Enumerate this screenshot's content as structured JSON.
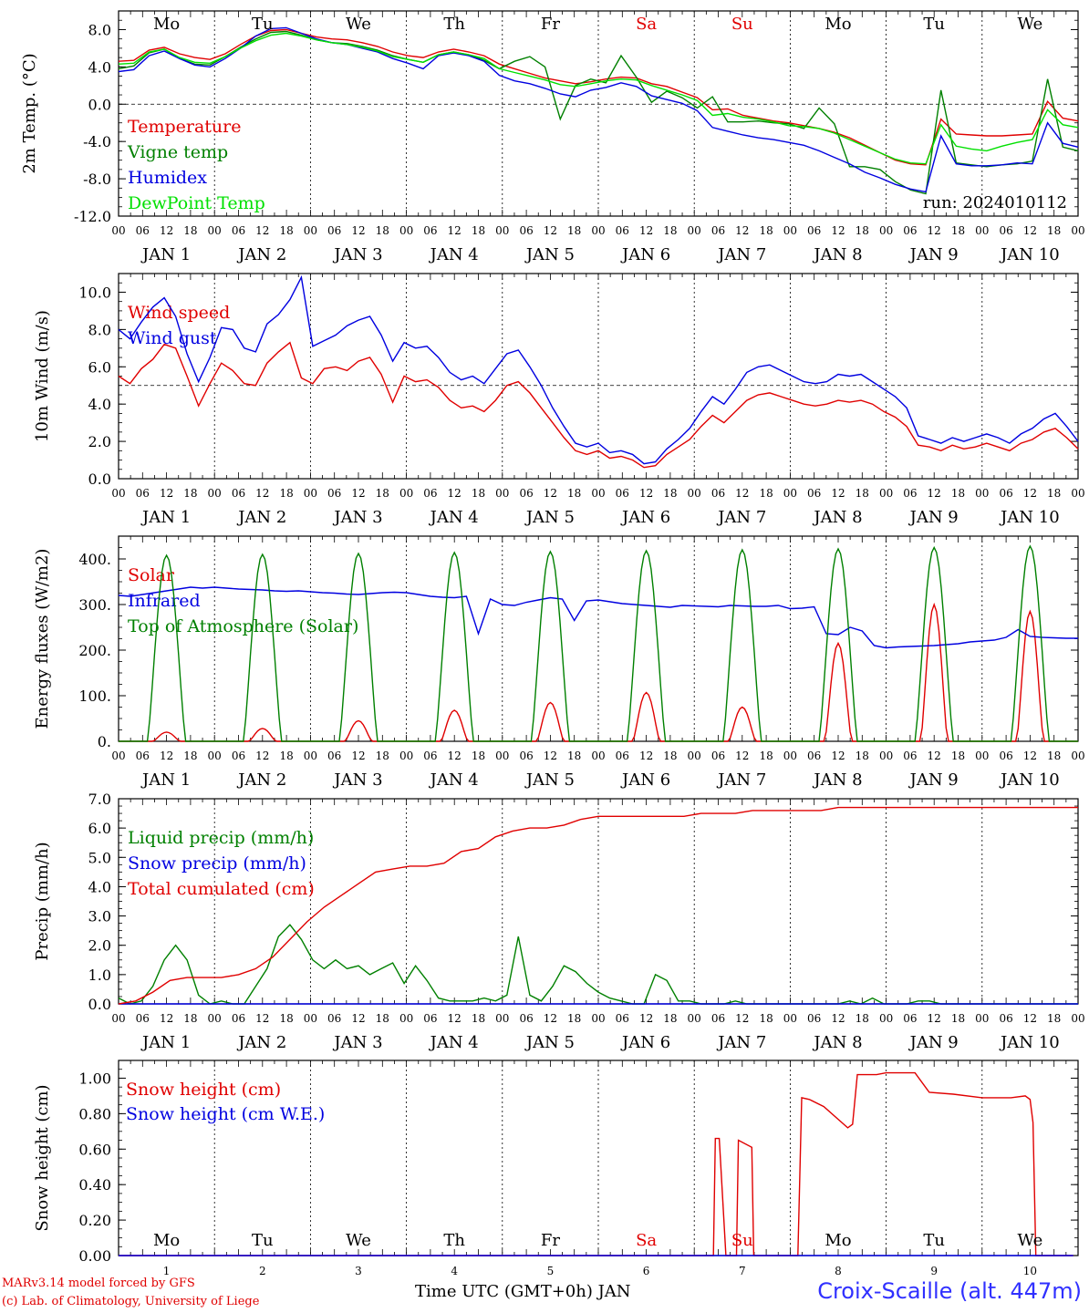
{
  "footer": {
    "model": "MARv3.14 model forced by GFS",
    "lab": "(c) Lab. of Climatology, University of Liege",
    "station": "Croix-Scaille (alt. 447m)",
    "axis_title": "Time UTC (GMT+0h) JAN"
  },
  "days": {
    "top_labels": [
      "Mo",
      "Tu",
      "We",
      "Th",
      "Fr",
      "Sa",
      "Su",
      "Mo",
      "Tu",
      "We"
    ],
    "weekend_color": "#e00000",
    "hour_ticks": [
      "00",
      "06",
      "12",
      "18"
    ],
    "date_labels": [
      "JAN  1",
      "JAN  2",
      "JAN  3",
      "JAN  4",
      "JAN  5",
      "JAN  6",
      "JAN  7",
      "JAN  8",
      "JAN  9",
      "JAN 10"
    ],
    "bottom_numbers": [
      "1",
      "2",
      "3",
      "4",
      "5",
      "6",
      "7",
      "8",
      "9",
      "10"
    ]
  },
  "chart_data": [
    {
      "type": "line",
      "ylabel": "2m Temp. (°C)",
      "ylim": [
        -12,
        10
      ],
      "yticks": [
        "8.0",
        "4.0",
        "0.0",
        "-4.0",
        "-8.0",
        "-12.0"
      ],
      "yticks_values": [
        8,
        4,
        0,
        -4,
        -8,
        -12
      ],
      "ref_line": 0,
      "annotation": "run: 2024010112",
      "series": [
        {
          "name": "Temperature",
          "color": "#e00000",
          "values": [
            4.6,
            4.7,
            5.8,
            6.1,
            5.4,
            5.0,
            4.8,
            5.4,
            6.4,
            7.3,
            7.9,
            8.0,
            7.6,
            7.2,
            7.0,
            6.9,
            6.6,
            6.2,
            5.6,
            5.2,
            5.0,
            5.6,
            5.9,
            5.6,
            5.2,
            4.3,
            3.8,
            3.3,
            2.8,
            2.5,
            2.2,
            2.4,
            2.7,
            2.9,
            2.8,
            2.2,
            1.9,
            1.3,
            0.7,
            -0.6,
            -0.5,
            -1.2,
            -1.5,
            -1.8,
            -2.0,
            -2.3,
            -2.6,
            -3.0,
            -3.6,
            -4.4,
            -5.2,
            -6.0,
            -6.4,
            -6.5,
            -1.6,
            -3.2,
            -3.3,
            -3.4,
            -3.4,
            -3.3,
            -3.2,
            0.3,
            -1.5,
            -1.8
          ]
        },
        {
          "name": "Vigne temp",
          "color": "#008000",
          "values": [
            3.8,
            4.1,
            5.5,
            5.9,
            4.9,
            4.3,
            4.2,
            5.1,
            6.1,
            7.0,
            7.7,
            7.8,
            7.4,
            6.9,
            6.6,
            6.5,
            6.2,
            5.8,
            5.2,
            4.8,
            4.5,
            5.3,
            5.6,
            5.3,
            4.7,
            3.8,
            4.6,
            5.1,
            4.0,
            -1.6,
            2.0,
            2.7,
            2.3,
            5.2,
            2.9,
            0.2,
            1.4,
            0.7,
            -0.4,
            0.8,
            -1.9,
            -1.9,
            -1.8,
            -2.0,
            -2.1,
            -2.6,
            -0.4,
            -2.1,
            -6.7,
            -6.7,
            -7.0,
            -8.3,
            -9.2,
            -9.6,
            1.5,
            -6.3,
            -6.5,
            -6.7,
            -6.5,
            -6.4,
            -6.1,
            2.7,
            -4.6,
            -5.0
          ]
        },
        {
          "name": "Humidex",
          "color": "#0000e0",
          "values": [
            3.5,
            3.7,
            5.2,
            5.7,
            4.9,
            4.2,
            4.0,
            4.9,
            6.0,
            7.3,
            8.1,
            8.2,
            7.6,
            7.0,
            6.6,
            6.4,
            6.0,
            5.6,
            4.9,
            4.4,
            3.8,
            5.2,
            5.5,
            5.2,
            4.6,
            3.1,
            2.5,
            2.2,
            1.7,
            1.1,
            0.8,
            1.5,
            1.8,
            2.3,
            1.9,
            0.9,
            0.5,
            0.1,
            -0.7,
            -2.5,
            -2.9,
            -3.3,
            -3.6,
            -3.8,
            -4.1,
            -4.4,
            -5.0,
            -5.7,
            -6.4,
            -7.3,
            -7.9,
            -8.6,
            -9.1,
            -9.4,
            -3.4,
            -6.4,
            -6.6,
            -6.6,
            -6.5,
            -6.3,
            -6.4,
            -2.0,
            -4.2,
            -4.6
          ]
        },
        {
          "name": "DewPoint Temp",
          "color": "#00e000",
          "values": [
            4.3,
            4.4,
            5.6,
            5.9,
            5.0,
            4.5,
            4.4,
            5.1,
            6.0,
            6.8,
            7.4,
            7.6,
            7.3,
            6.9,
            6.6,
            6.4,
            6.1,
            5.7,
            5.1,
            4.8,
            4.5,
            5.3,
            5.6,
            5.3,
            4.9,
            3.8,
            3.4,
            3.0,
            2.6,
            2.1,
            1.9,
            2.2,
            2.5,
            2.7,
            2.6,
            2.0,
            1.5,
            1.0,
            0.4,
            -1.2,
            -1.0,
            -1.4,
            -1.6,
            -1.9,
            -2.3,
            -2.4,
            -2.6,
            -3.1,
            -3.8,
            -4.5,
            -5.2,
            -5.9,
            -6.3,
            -6.4,
            -2.2,
            -4.5,
            -4.8,
            -5.0,
            -4.5,
            -4.1,
            -3.8,
            -0.6,
            -2.2,
            -2.5
          ]
        }
      ]
    },
    {
      "type": "line",
      "ylabel": "10m Wind (m/s)",
      "ylim": [
        0,
        11
      ],
      "yticks": [
        "10.0",
        "8.0",
        "6.0",
        "4.0",
        "2.0",
        "0.0"
      ],
      "yticks_values": [
        10,
        8,
        6,
        4,
        2,
        0
      ],
      "ref_line": 5,
      "series": [
        {
          "name": "Wind speed",
          "color": "#e00000",
          "values": [
            5.5,
            5.1,
            5.9,
            6.4,
            7.2,
            7.0,
            5.5,
            3.9,
            5.1,
            6.2,
            5.8,
            5.1,
            5.0,
            6.2,
            6.8,
            7.3,
            5.4,
            5.1,
            5.9,
            6.0,
            5.8,
            6.3,
            6.5,
            5.6,
            4.1,
            5.5,
            5.2,
            5.3,
            4.9,
            4.2,
            3.8,
            3.9,
            3.6,
            4.2,
            5.0,
            5.2,
            4.6,
            3.8,
            3.0,
            2.2,
            1.5,
            1.3,
            1.5,
            1.1,
            1.2,
            1.0,
            0.6,
            0.7,
            1.3,
            1.7,
            2.1,
            2.8,
            3.4,
            3.0,
            3.6,
            4.2,
            4.5,
            4.6,
            4.4,
            4.2,
            4.0,
            3.9,
            4.0,
            4.2,
            4.1,
            4.2,
            4.0,
            3.6,
            3.3,
            2.8,
            1.8,
            1.7,
            1.5,
            1.8,
            1.6,
            1.7,
            1.9,
            1.7,
            1.5,
            1.9,
            2.1,
            2.5,
            2.7,
            2.2,
            1.6
          ]
        },
        {
          "name": "Wind gust",
          "color": "#0000e0",
          "values": [
            8.0,
            7.5,
            8.4,
            9.2,
            9.7,
            8.7,
            6.7,
            5.2,
            6.5,
            8.1,
            8.0,
            7.0,
            6.8,
            8.3,
            8.8,
            9.6,
            10.8,
            7.1,
            7.4,
            7.7,
            8.2,
            8.5,
            8.7,
            7.7,
            6.3,
            7.3,
            7.0,
            7.1,
            6.5,
            5.7,
            5.3,
            5.5,
            5.1,
            5.9,
            6.7,
            6.9,
            6.0,
            5.0,
            3.8,
            2.8,
            1.9,
            1.7,
            1.9,
            1.4,
            1.5,
            1.3,
            0.8,
            0.9,
            1.6,
            2.1,
            2.7,
            3.6,
            4.4,
            4.0,
            4.8,
            5.7,
            6.0,
            6.1,
            5.8,
            5.5,
            5.2,
            5.1,
            5.2,
            5.6,
            5.5,
            5.6,
            5.2,
            4.8,
            4.4,
            3.8,
            2.3,
            2.1,
            1.9,
            2.2,
            2.0,
            2.2,
            2.4,
            2.2,
            1.9,
            2.4,
            2.7,
            3.2,
            3.5,
            2.8,
            2.0
          ]
        }
      ]
    },
    {
      "type": "line",
      "ylabel": "Energy fluxes (W/m2)",
      "ylim": [
        0,
        450
      ],
      "yticks": [
        "400.",
        "300.",
        "200.",
        "100.",
        "0."
      ],
      "yticks_values": [
        400,
        300,
        200,
        100,
        0
      ],
      "series": [
        {
          "name": "Solar",
          "color": "#e00000",
          "day_peaks": [
            20,
            28,
            45,
            68,
            85,
            107,
            75,
            215,
            300,
            285
          ]
        },
        {
          "name": "Infrared",
          "color": "#0000e0",
          "values": [
            320,
            318,
            322,
            326,
            330,
            334,
            338,
            336,
            338,
            336,
            334,
            333,
            332,
            330,
            329,
            330,
            328,
            326,
            325,
            323,
            322,
            324,
            326,
            327,
            326,
            322,
            318,
            316,
            315,
            318,
            236,
            312,
            300,
            298,
            305,
            310,
            315,
            312,
            265,
            308,
            310,
            306,
            302,
            300,
            298,
            296,
            294,
            298,
            297,
            296,
            295,
            298,
            297,
            296,
            296,
            298,
            291,
            292,
            295,
            236,
            234,
            250,
            242,
            210,
            205,
            207,
            208,
            209,
            210,
            212,
            214,
            218,
            220,
            222,
            228,
            245,
            230,
            228,
            227,
            226,
            226
          ]
        },
        {
          "name": "Top of Atmosphere (Solar)",
          "color": "#008000",
          "day_peaks": [
            408,
            410,
            412,
            414,
            416,
            418,
            420,
            422,
            425,
            428
          ]
        }
      ]
    },
    {
      "type": "line",
      "ylabel": "Precip (mm/h)",
      "ylim": [
        0,
        7
      ],
      "yticks": [
        "7.0",
        "6.0",
        "5.0",
        "4.0",
        "3.0",
        "2.0",
        "1.0",
        "0.0"
      ],
      "yticks_values": [
        7,
        6,
        5,
        4,
        3,
        2,
        1,
        0
      ],
      "series": [
        {
          "name": "Liquid precip (mm/h)",
          "color": "#008000",
          "values": [
            0.2,
            0.0,
            0.1,
            0.6,
            1.5,
            2.0,
            1.5,
            0.3,
            0.0,
            0.1,
            0.0,
            0.0,
            0.6,
            1.2,
            2.3,
            2.7,
            2.2,
            1.5,
            1.2,
            1.5,
            1.2,
            1.3,
            1.0,
            1.2,
            1.4,
            0.7,
            1.3,
            0.8,
            0.2,
            0.1,
            0.1,
            0.1,
            0.2,
            0.1,
            0.3,
            2.3,
            0.3,
            0.1,
            0.6,
            1.3,
            1.1,
            0.7,
            0.4,
            0.2,
            0.1,
            0.0,
            0.0,
            1.0,
            0.8,
            0.1,
            0.1,
            0.0,
            0.0,
            0.0,
            0.1,
            0.0,
            0.0,
            0.0,
            0.0,
            0.0,
            0.0,
            0.0,
            0.0,
            0.0,
            0.1,
            0.0,
            0.2,
            0.0,
            0.0,
            0.0,
            0.1,
            0.1,
            0.0,
            0.0,
            0.0,
            0.0,
            0.0,
            0.0,
            0.0,
            0.0,
            0.0,
            0.0,
            0.0,
            0.0,
            0.0
          ]
        },
        {
          "name": "Snow precip (mm/h)",
          "color": "#0000e0",
          "values": [
            0.0,
            0.0,
            0.0,
            0.0,
            0.0,
            0.0,
            0.0,
            0.0,
            0.0,
            0.0,
            0.0,
            0.0,
            0.0,
            0.0,
            0.0,
            0.0,
            0.0,
            0.0,
            0.0,
            0.0,
            0.0,
            0.0,
            0.0,
            0.0,
            0.0,
            0.0,
            0.0,
            0.0,
            0.0,
            0.0,
            0.0,
            0.0,
            0.0,
            0.0,
            0.0,
            0.0,
            0.0,
            0.0,
            0.0,
            0.0,
            0.0,
            0.0,
            0.0,
            0.0,
            0.0,
            0.0,
            0.0,
            0.0,
            0.0,
            0.0,
            0.0,
            0.0,
            0.0,
            0.0,
            0.0,
            0.0,
            0.0,
            0.0,
            0.0,
            0.0,
            0.0,
            0.0,
            0.0,
            0.0,
            0.0,
            0.0,
            0.0,
            0.0,
            0.0,
            0.0,
            0.0,
            0.0,
            0.0,
            0.0,
            0.0,
            0.0,
            0.0,
            0.0,
            0.0,
            0.0,
            0.0,
            0.0,
            0.0,
            0.0,
            0.0
          ]
        },
        {
          "name": "Total cumulated (cm)",
          "color": "#e00000",
          "values": [
            0.0,
            0.1,
            0.4,
            0.8,
            0.9,
            0.9,
            0.9,
            1.0,
            1.2,
            1.6,
            2.2,
            2.8,
            3.3,
            3.7,
            4.1,
            4.5,
            4.6,
            4.7,
            4.7,
            4.8,
            5.2,
            5.3,
            5.7,
            5.9,
            6.0,
            6.0,
            6.1,
            6.3,
            6.4,
            6.4,
            6.4,
            6.4,
            6.4,
            6.4,
            6.5,
            6.5,
            6.5,
            6.6,
            6.6,
            6.6,
            6.6,
            6.6,
            6.7,
            6.7,
            6.7,
            6.7,
            6.7,
            6.7,
            6.7,
            6.7,
            6.7,
            6.7,
            6.7,
            6.7,
            6.7,
            6.7,
            6.7
          ]
        }
      ]
    },
    {
      "type": "line",
      "ylabel": "Snow height (cm)",
      "ylim": [
        0,
        1.1
      ],
      "yticks": [
        "1.00",
        "0.80",
        "0.60",
        "0.40",
        "0.20",
        "0.00"
      ],
      "yticks_values": [
        1.0,
        0.8,
        0.6,
        0.4,
        0.2,
        0.0
      ],
      "series": [
        {
          "name": "Snow height (cm)",
          "color": "#e00000",
          "points": [
            [
              0,
              0
            ],
            [
              6.2,
              0
            ],
            [
              6.22,
              0.66
            ],
            [
              6.26,
              0.66
            ],
            [
              6.33,
              0
            ],
            [
              6.44,
              0
            ],
            [
              6.46,
              0.65
            ],
            [
              6.6,
              0.61
            ],
            [
              6.62,
              0
            ],
            [
              7.08,
              0
            ],
            [
              7.12,
              0.89
            ],
            [
              7.2,
              0.88
            ],
            [
              7.35,
              0.84
            ],
            [
              7.6,
              0.72
            ],
            [
              7.65,
              0.74
            ],
            [
              7.7,
              1.02
            ],
            [
              7.9,
              1.02
            ],
            [
              8.0,
              1.03
            ],
            [
              8.3,
              1.03
            ],
            [
              8.45,
              0.92
            ],
            [
              8.7,
              0.91
            ],
            [
              9.0,
              0.89
            ],
            [
              9.3,
              0.89
            ],
            [
              9.45,
              0.9
            ],
            [
              9.5,
              0.88
            ],
            [
              9.53,
              0.75
            ],
            [
              9.56,
              0
            ],
            [
              9.95,
              0
            ]
          ]
        },
        {
          "name": "Snow height (cm W.E.)",
          "color": "#0000e0",
          "points": [
            [
              0,
              0
            ],
            [
              9.95,
              0
            ]
          ]
        }
      ]
    }
  ]
}
